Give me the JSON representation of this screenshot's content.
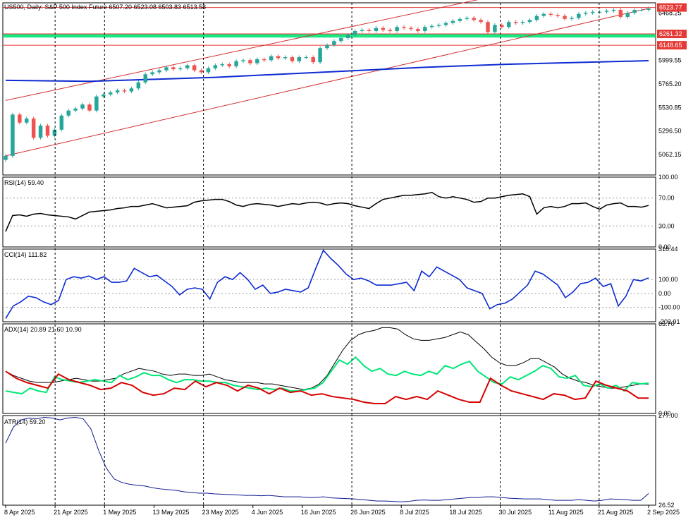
{
  "main_title": "US500, Daily:  S&P 500  Index Future  6507.20 6523.08 6503.83 6513.58",
  "colors": {
    "up": "#26a69a",
    "down": "#ef5350",
    "channel": "#d32f2f",
    "level": "#e53935",
    "zone": "#00e676",
    "ma": "#0d2bd1",
    "rsi": "#000000",
    "cci": "#0d2bd1",
    "adx": "#000000",
    "plus_di": "#00e676",
    "minus_di": "#d50000",
    "atr": "#0d1a8c",
    "tag_red": "#e53935",
    "tag_blue": "#0d2bd1"
  },
  "chart_data": [
    {
      "name": "price",
      "type": "candlestick",
      "title": "US500, Daily:  S&P 500  Index Future  6507.20 6523.08 6503.83 6513.58",
      "ylim": [
        4860,
        6570
      ],
      "y_ticks": [
        "6468.25",
        "5999.55",
        "5765.20",
        "5530.85",
        "5296.50",
        "5062.15"
      ],
      "x_dates": [
        "8 Apr 2025",
        "21 Apr 2025",
        "1 May 2025",
        "13 May 2025",
        "23 May 2025",
        "4 Jun 2025",
        "16 Jun 2025",
        "26 Jun 2025",
        "8 Jul 2025",
        "18 Jul 2025",
        "30 Jul 2025",
        "11 Aug 2025",
        "21 Aug 2025",
        "2 Sep 2025"
      ],
      "period_separators": [
        "21 Apr 2025",
        "1 May 2025",
        "23 May 2025",
        "26 Jun 2025",
        "30 Jul 2025",
        "21 Aug 2025"
      ],
      "closes": [
        5050,
        5460,
        5380,
        5420,
        5230,
        5350,
        5250,
        5310,
        5450,
        5500,
        5520,
        5560,
        5500,
        5640,
        5660,
        5680,
        5700,
        5690,
        5720,
        5780,
        5860,
        5880,
        5900,
        5930,
        5910,
        5920,
        5950,
        5900,
        5880,
        5920,
        5950,
        5960,
        5940,
        5990,
        6000,
        5970,
        6010,
        6000,
        6040,
        6020,
        6030,
        5990,
        6030,
        6030,
        5980,
        6120,
        6150,
        6190,
        6220,
        6250,
        6290,
        6300,
        6290,
        6320,
        6300,
        6290,
        6330,
        6320,
        6310,
        6290,
        6330,
        6340,
        6350,
        6370,
        6390,
        6410,
        6420,
        6400,
        6380,
        6280,
        6350,
        6330,
        6380,
        6370,
        6380,
        6400,
        6440,
        6460,
        6450,
        6440,
        6410,
        6420,
        6460,
        6470,
        6480,
        6480,
        6490,
        6500,
        6430,
        6470,
        6500,
        6500,
        6513.58
      ],
      "levels": [
        {
          "label": "6523.77",
          "value": 6523.77,
          "style": "red"
        },
        {
          "label": "6261.32",
          "value": 6261.32,
          "style": "red"
        },
        {
          "label": "6148.65",
          "value": 6148.65,
          "style": "red"
        }
      ],
      "zone": [
        6225,
        6265
      ],
      "channel": {
        "upper": [
          [
            0,
            5600
          ],
          [
            81,
            6800
          ]
        ],
        "lower": [
          [
            0,
            5050
          ],
          [
            92,
            6515
          ]
        ]
      },
      "moving_average": [
        [
          0,
          5800
        ],
        [
          12,
          5790
        ],
        [
          30,
          5830
        ],
        [
          60,
          5930
        ],
        [
          72,
          5960
        ],
        [
          92,
          5995
        ]
      ],
      "tags": [
        {
          "label": "6523.77",
          "value": 6523.77,
          "style": "red"
        },
        {
          "label": "6261.32",
          "value": 6261.32,
          "style": "red"
        },
        {
          "label": "6148.65",
          "value": 6148.65,
          "style": "red"
        }
      ]
    },
    {
      "name": "rsi",
      "type": "line",
      "title": "RSI(14) 59.40",
      "ylim": [
        0,
        100
      ],
      "y_ticks": [
        100,
        70,
        30,
        0
      ],
      "y_tick_labels": [
        "100.00",
        "70.00",
        "30.00",
        "0.00"
      ],
      "levels": [
        70,
        30
      ],
      "values": [
        22,
        45,
        46,
        44,
        47,
        48,
        46,
        45,
        44,
        43,
        40,
        45,
        50,
        51,
        52,
        53,
        55,
        56,
        58,
        58,
        60,
        62,
        59,
        56,
        57,
        58,
        59,
        64,
        66,
        67,
        68,
        68,
        65,
        60,
        58,
        61,
        62,
        61,
        60,
        58,
        60,
        62,
        61,
        63,
        64,
        63,
        60,
        62,
        63,
        62,
        59,
        57,
        55,
        62,
        68,
        70,
        72,
        74,
        74,
        75,
        76,
        78,
        72,
        70,
        72,
        70,
        68,
        64,
        65,
        70,
        70,
        72,
        74,
        75,
        76,
        72,
        47,
        56,
        58,
        56,
        58,
        62,
        62,
        63,
        58,
        54,
        60,
        62,
        63,
        58,
        58,
        57,
        59.4
      ]
    },
    {
      "name": "cci",
      "type": "line",
      "title": "CCI(14) 111.82",
      "ylim": [
        -202.91,
        318.44
      ],
      "y_ticks": [
        318.44,
        100,
        0,
        -100,
        -202.91
      ],
      "y_tick_labels": [
        "318.44",
        "100.00",
        "0.00",
        "-100.00",
        "-202.91"
      ],
      "levels": [
        100,
        0,
        -100
      ],
      "values": [
        -180,
        -90,
        -60,
        -20,
        -30,
        -60,
        -80,
        -50,
        100,
        120,
        110,
        125,
        100,
        120,
        80,
        80,
        90,
        180,
        150,
        120,
        130,
        90,
        50,
        -10,
        30,
        40,
        30,
        -40,
        80,
        120,
        100,
        150,
        100,
        30,
        60,
        0,
        10,
        30,
        20,
        10,
        40,
        180,
        310,
        250,
        200,
        140,
        100,
        110,
        90,
        60,
        60,
        60,
        70,
        80,
        20,
        160,
        120,
        190,
        160,
        130,
        100,
        40,
        20,
        0,
        -110,
        -80,
        -70,
        -40,
        10,
        60,
        160,
        140,
        100,
        60,
        -30,
        10,
        70,
        80,
        110,
        50,
        70,
        -90,
        -20,
        100,
        90,
        111.82
      ]
    },
    {
      "name": "adx",
      "type": "line",
      "title": "ADX(14) 20.89 21.60 10.90",
      "ylim": [
        0,
        63.7
      ],
      "y_ticks": [
        63.7,
        0.0
      ],
      "y_tick_labels": [
        "63.70",
        "0.00"
      ],
      "series": [
        {
          "name": "ADX",
          "values": [
            30,
            27,
            25,
            23,
            22,
            22,
            22,
            23,
            24,
            25,
            24,
            23,
            23,
            24,
            25,
            28,
            30,
            32,
            31,
            30,
            28,
            27,
            28,
            28,
            27,
            27,
            28,
            26,
            24,
            23,
            22,
            22,
            22,
            21,
            21,
            20,
            19,
            18,
            17,
            18,
            21,
            27,
            36,
            45,
            52,
            56,
            58,
            59,
            61,
            61,
            60,
            56,
            53,
            52,
            52,
            53,
            54,
            56,
            58,
            56,
            51,
            46,
            40,
            36,
            34,
            34,
            36,
            39,
            39,
            36,
            33,
            28,
            25,
            23,
            22,
            20,
            19,
            18,
            18,
            19,
            20,
            21,
            20.89
          ]
        },
        {
          "name": "+DI",
          "values": [
            16,
            15,
            14,
            18,
            16,
            15,
            26,
            24,
            23,
            22,
            23,
            24,
            23,
            22,
            27,
            24,
            26,
            29,
            27,
            27,
            24,
            22,
            24,
            24,
            23,
            23,
            22,
            22,
            20,
            19,
            18,
            17,
            18,
            17,
            18,
            16,
            16,
            17,
            18,
            22,
            30,
            38,
            35,
            40,
            34,
            30,
            32,
            28,
            27,
            30,
            28,
            27,
            30,
            28,
            34,
            32,
            35,
            37,
            30,
            26,
            22,
            21,
            26,
            24,
            27,
            30,
            34,
            32,
            26,
            25,
            27,
            20,
            19,
            21,
            18,
            20,
            16,
            22,
            21,
            21.6
          ]
        },
        {
          "name": "-DI",
          "values": [
            30,
            25,
            22,
            20,
            18,
            28,
            24,
            22,
            20,
            17,
            18,
            22,
            20,
            15,
            13,
            14,
            18,
            17,
            23,
            19,
            22,
            20,
            16,
            20,
            18,
            14,
            18,
            15,
            16,
            13,
            14,
            12,
            11,
            10,
            8,
            7,
            7,
            12,
            10,
            12,
            10,
            16,
            13,
            10,
            8,
            8,
            25,
            20,
            16,
            14,
            12,
            10,
            14,
            13,
            10,
            11,
            23,
            20,
            18,
            16,
            11,
            10.9
          ]
        }
      ]
    },
    {
      "name": "atr",
      "type": "line",
      "title": "ATR(14) 59.20",
      "ylim": [
        26.52,
        277.0
      ],
      "y_ticks": [
        277.0,
        26.52
      ],
      "y_tick_labels": [
        "277.00",
        "26.52"
      ],
      "values": [
        200,
        245,
        265,
        270,
        268,
        272,
        270,
        265,
        270,
        272,
        268,
        240,
        180,
        130,
        100,
        90,
        85,
        82,
        80,
        75,
        72,
        70,
        68,
        64,
        62,
        60,
        60,
        58,
        57,
        56,
        55,
        54,
        54,
        53,
        54,
        52,
        50,
        50,
        50,
        48,
        48,
        50,
        47,
        46,
        45,
        44,
        42,
        40,
        38,
        38,
        37,
        36,
        37,
        40,
        41,
        40,
        40,
        42,
        44,
        46,
        48,
        48,
        50,
        50,
        48,
        46,
        45,
        44,
        44,
        44,
        42,
        40,
        40,
        40,
        42,
        40,
        38,
        40,
        44,
        43,
        42,
        40,
        40,
        59.2
      ]
    }
  ]
}
